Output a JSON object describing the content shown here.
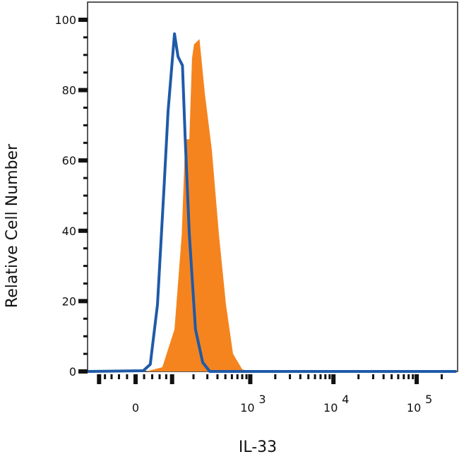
{
  "chart_data": {
    "type": "area",
    "title": "",
    "xlabel": "IL-33",
    "ylabel": "Relative Cell Number",
    "x_scale": "biexponential",
    "xlim": [
      -150,
      300000
    ],
    "ylim": [
      0,
      100
    ],
    "grid": false,
    "legend": "none",
    "x_ticks": [
      {
        "value": 0,
        "label": "0",
        "exp": ""
      },
      {
        "value": 1000,
        "label": "10",
        "exp": "3"
      },
      {
        "value": 10000,
        "label": "10",
        "exp": "4"
      },
      {
        "value": 100000,
        "label": "10",
        "exp": "5"
      }
    ],
    "y_ticks": [
      {
        "value": 0,
        "label": "0"
      },
      {
        "value": 20,
        "label": "20"
      },
      {
        "value": 40,
        "label": "40"
      },
      {
        "value": 60,
        "label": "60"
      },
      {
        "value": 80,
        "label": "80"
      },
      {
        "value": 100,
        "label": "100"
      }
    ],
    "series": [
      {
        "style": "filled",
        "color": "#f5841f",
        "points": [
          [
            -150,
            0
          ],
          [
            25,
            0
          ],
          [
            68,
            1.2
          ],
          [
            109,
            12
          ],
          [
            139,
            39
          ],
          [
            155,
            66
          ],
          [
            176,
            66
          ],
          [
            191,
            89
          ],
          [
            203,
            93
          ],
          [
            239,
            94.5
          ],
          [
            279,
            79
          ],
          [
            341,
            63
          ],
          [
            417,
            39
          ],
          [
            508,
            19
          ],
          [
            619,
            5
          ],
          [
            800,
            0.6
          ],
          [
            974,
            0
          ],
          [
            300000,
            0
          ]
        ]
      },
      {
        "style": "outline",
        "color": "#1f5aa8",
        "points": [
          [
            -150,
            0
          ],
          [
            18,
            0.2
          ],
          [
            35,
            2
          ],
          [
            54,
            19
          ],
          [
            73,
            52
          ],
          [
            86,
            74
          ],
          [
            109,
            96
          ],
          [
            123,
            89.5
          ],
          [
            142,
            87
          ],
          [
            155,
            66
          ],
          [
            176,
            39
          ],
          [
            212,
            12
          ],
          [
            262,
            2.6
          ],
          [
            321,
            0
          ],
          [
            300000,
            0
          ]
        ]
      }
    ]
  }
}
